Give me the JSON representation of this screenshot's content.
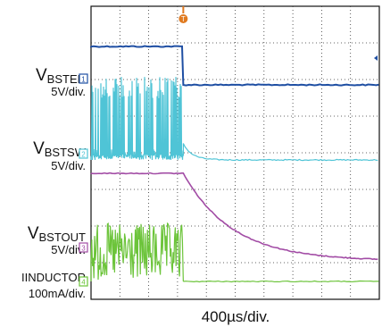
{
  "chart_data": {
    "type": "line",
    "title": "",
    "xlabel": "400µs/div.",
    "ylabel": "",
    "grid": true,
    "x_divisions": 10,
    "y_divisions": 8,
    "trigger_marker": "T",
    "channels": [
      {
        "id": "1",
        "name": "V_BSTEN",
        "name_main": "V",
        "name_sub": "BSTEN",
        "scale": "5V/div.",
        "color": "#1f4fa3",
        "behavior": "high then steps low at trigger"
      },
      {
        "id": "2",
        "name": "V_BSTSW",
        "name_main": "V",
        "name_sub": "BSTSW",
        "scale": "5V/div.",
        "color": "#4fc4d6",
        "behavior": "switching then decays to zero after trigger"
      },
      {
        "id": "3",
        "name": "V_BSTOUT",
        "name_main": "V",
        "name_sub": "BSTOUT",
        "scale": "5V/div.",
        "color": "#a24ca5",
        "behavior": "steady then exponential decay after trigger"
      },
      {
        "id": "4",
        "name": "I_INDUCTOR",
        "name_main": "I",
        "name_sub": "INDUCTOR",
        "scale": "100mA/div.",
        "color": "#6cc43a",
        "behavior": "ripple then zero after trigger"
      }
    ]
  }
}
